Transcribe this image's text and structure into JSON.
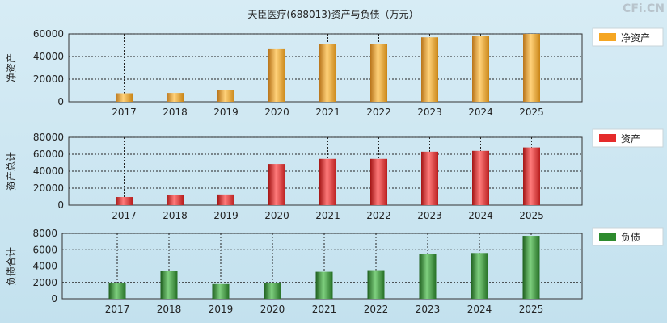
{
  "title": "天臣医疗(688013)资产与负债（万元）",
  "watermark": "CFi.CN",
  "categories": [
    "2017",
    "2018",
    "2019",
    "2020",
    "2021",
    "2022",
    "2023",
    "2024",
    "2025"
  ],
  "chart_data": [
    {
      "type": "bar",
      "ylabel": "净资产",
      "legend": "净资产",
      "color": "#f5a623",
      "ylim": [
        0,
        60000
      ],
      "yticks": [
        0,
        20000,
        40000,
        60000
      ],
      "categories": [
        "2017",
        "2018",
        "2019",
        "2020",
        "2021",
        "2022",
        "2023",
        "2024",
        "2025"
      ],
      "series": [
        {
          "name": "净资产",
          "values": [
            7500,
            7800,
            10500,
            46500,
            51000,
            51000,
            57000,
            58000,
            60000
          ]
        }
      ]
    },
    {
      "type": "bar",
      "ylabel": "资产总计",
      "legend": "资产",
      "color": "#e52b2b",
      "ylim": [
        0,
        80000
      ],
      "yticks": [
        0,
        20000,
        40000,
        60000,
        80000
      ],
      "categories": [
        "2017",
        "2018",
        "2019",
        "2020",
        "2021",
        "2022",
        "2023",
        "2024",
        "2025"
      ],
      "series": [
        {
          "name": "资产",
          "values": [
            9500,
            11500,
            12500,
            48500,
            54500,
            54500,
            63000,
            64000,
            68000
          ]
        }
      ]
    },
    {
      "type": "bar",
      "ylabel": "负债合计",
      "legend": "负债",
      "color": "#2e8b2e",
      "ylim": [
        0,
        8000
      ],
      "yticks": [
        0,
        2000,
        4000,
        6000,
        8000
      ],
      "categories": [
        "2017",
        "2018",
        "2019",
        "2020",
        "2021",
        "2022",
        "2023",
        "2024",
        "2025"
      ],
      "series": [
        {
          "name": "负债",
          "values": [
            1900,
            3400,
            1800,
            1900,
            3300,
            3500,
            5500,
            5600,
            7700
          ]
        }
      ]
    }
  ]
}
